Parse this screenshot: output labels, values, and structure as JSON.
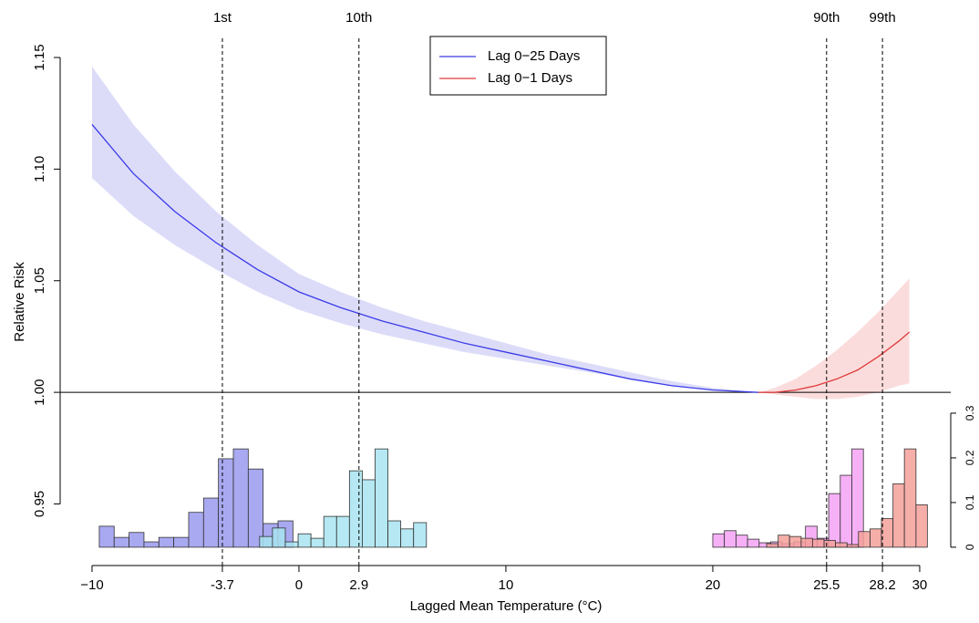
{
  "chart_data": {
    "type": "line",
    "x_label": "Lagged Mean Temperature (°C)",
    "y_label": "Relative Risk",
    "xlim": [
      -11.54,
      31.5
    ],
    "ylim": [
      0.9224,
      1.1586
    ],
    "y2lim": [
      -0.041,
      1.139
    ],
    "xticks": [
      {
        "value": -10,
        "label": "−10"
      },
      -3.7,
      0,
      2.9,
      10,
      20,
      25.5,
      28.2,
      30
    ],
    "yticks": [
      0.95,
      {
        "value": 1.0,
        "label": "1.00"
      },
      1.05,
      {
        "value": 1.1,
        "label": "1.10"
      },
      1.15
    ],
    "y2ticks": [
      0,
      0.1,
      0.2,
      0.3
    ],
    "reference_line": 1,
    "legend_position": "top",
    "percentiles": [
      {
        "value": -3.7,
        "label": "1st"
      },
      {
        "value": 2.9,
        "label": "10th"
      },
      {
        "value": 25.5,
        "label": "90th"
      },
      {
        "value": 28.2,
        "label": "99th"
      }
    ],
    "series": [
      {
        "name": "Lag 0−25 Days",
        "color": "#3b3be8",
        "band_color": "#dcdcf9",
        "x": [
          -10,
          -8,
          -6,
          -4,
          -2,
          0,
          2,
          4,
          6,
          8,
          10,
          12,
          14,
          16,
          18,
          20,
          22.2
        ],
        "values": [
          1.12,
          1.098,
          1.081,
          1.067,
          1.055,
          1.045,
          1.038,
          1.032,
          1.027,
          1.022,
          1.018,
          1.014,
          1.01,
          1.006,
          1.003,
          1.001,
          1.0
        ],
        "lower": [
          1.096,
          1.079,
          1.066,
          1.055,
          1.045,
          1.037,
          1.031,
          1.026,
          1.022,
          1.018,
          1.015,
          1.012,
          1.009,
          1.006,
          1.003,
          1.001,
          1.0
        ],
        "upper": [
          1.146,
          1.12,
          1.099,
          1.081,
          1.066,
          1.053,
          1.045,
          1.038,
          1.032,
          1.027,
          1.022,
          1.017,
          1.013,
          1.009,
          1.005,
          1.002,
          1.0
        ]
      },
      {
        "name": "Lag 0−1 Days",
        "color": "#e03a3a",
        "band_color": "#fbdcdc",
        "x": [
          22.2,
          23,
          24,
          25,
          26,
          27,
          28,
          29,
          29.5
        ],
        "values": [
          1.0,
          1.0,
          1.001,
          1.003,
          1.006,
          1.01,
          1.016,
          1.023,
          1.027
        ],
        "lower": [
          1.0,
          0.999,
          0.998,
          0.997,
          0.997,
          0.998,
          1.0,
          1.003,
          1.004
        ],
        "upper": [
          1.0,
          1.002,
          1.006,
          1.012,
          1.019,
          1.027,
          1.036,
          1.046,
          1.051
        ]
      }
    ],
    "histograms": [
      {
        "color": "#9a9aee",
        "axis": "y2",
        "bins": [
          -9.65,
          -8.93,
          -8.21,
          -7.49,
          -6.77,
          -6.05,
          -5.33,
          -4.61,
          -3.89,
          -3.17,
          -2.45,
          -1.73,
          -1.01,
          -0.29
        ],
        "counts": [
          0.047,
          0.022,
          0.033,
          0.012,
          0.022,
          0.022,
          0.078,
          0.11,
          0.198,
          0.22,
          0.175,
          0.053,
          0.059
        ]
      },
      {
        "color": "#a8e4f0",
        "axis": "y2",
        "bins": [
          -1.9,
          -1.28,
          -0.66,
          -0.04,
          0.58,
          1.2,
          1.82,
          2.44,
          3.06,
          3.68,
          4.3,
          4.92,
          5.54,
          6.16
        ],
        "counts": [
          0.024,
          0.043,
          0.012,
          0.03,
          0.02,
          0.069,
          0.069,
          0.171,
          0.151,
          0.22,
          0.059,
          0.041,
          0.055
        ]
      },
      {
        "color": "#f4a2f4",
        "axis": "y2",
        "bins": [
          20,
          20.56,
          21.12,
          21.68,
          22.24,
          22.8,
          23.36,
          23.92,
          24.48,
          25.04,
          25.6,
          26.16,
          26.72,
          27.28
        ],
        "counts": [
          0.03,
          0.037,
          0.027,
          0.018,
          0.01,
          0.012,
          0.008,
          0.012,
          0.047,
          0.02,
          0.12,
          0.161,
          0.22
        ]
      },
      {
        "color": "#f4a09a",
        "axis": "y2",
        "bins": [
          22.6,
          23.16,
          23.71,
          24.27,
          24.82,
          25.38,
          25.93,
          26.49,
          27.04,
          27.6,
          28.15,
          28.71,
          29.26,
          29.82,
          30.37
        ],
        "counts": [
          0.008,
          0.027,
          0.024,
          0.02,
          0.018,
          0.015,
          0.01,
          0.006,
          0.035,
          0.041,
          0.064,
          0.142,
          0.22,
          0.095
        ]
      }
    ]
  }
}
